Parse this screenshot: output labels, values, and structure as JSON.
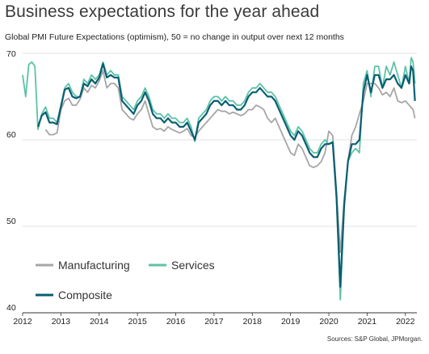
{
  "title": "Business expectations for the year ahead",
  "subtitle": "Global PMI Future Expectations (optimism), 50 = no change in output over next 12 months",
  "source": "Sources: S&P Global, JPMorgan.",
  "chart_data": {
    "type": "line",
    "ylim": [
      40,
      70
    ],
    "xlim": [
      2012.0,
      2022.3
    ],
    "yticks": [
      40,
      50,
      60,
      70
    ],
    "xticks": [
      "2012",
      "2013",
      "2014",
      "2015",
      "2016",
      "2017",
      "2018",
      "2019",
      "2020",
      "2021",
      "2022"
    ],
    "grid": "horizontal",
    "legend_position": "bottom-left",
    "colors": {
      "Manufacturing": "#a6a6a6",
      "Services": "#5cc2a6",
      "Composite": "#0a5e73"
    },
    "series": [
      {
        "name": "Manufacturing",
        "points": [
          [
            2012.6,
            61.2
          ],
          [
            2012.7,
            60.6
          ],
          [
            2012.8,
            60.6
          ],
          [
            2012.9,
            60.8
          ],
          [
            2013.0,
            63.5
          ],
          [
            2013.1,
            64.5
          ],
          [
            2013.2,
            64.8
          ],
          [
            2013.3,
            64.0
          ],
          [
            2013.4,
            64.0
          ],
          [
            2013.5,
            64.7
          ],
          [
            2013.6,
            66.0
          ],
          [
            2013.7,
            65.5
          ],
          [
            2013.8,
            66.3
          ],
          [
            2013.9,
            66.0
          ],
          [
            2014.0,
            66.8
          ],
          [
            2014.1,
            68.0
          ],
          [
            2014.2,
            66.0
          ],
          [
            2014.3,
            66.5
          ],
          [
            2014.4,
            66.5
          ],
          [
            2014.5,
            66.0
          ],
          [
            2014.6,
            63.5
          ],
          [
            2014.7,
            63.0
          ],
          [
            2014.8,
            62.5
          ],
          [
            2014.9,
            62.3
          ],
          [
            2015.0,
            63.0
          ],
          [
            2015.1,
            63.5
          ],
          [
            2015.2,
            64.5
          ],
          [
            2015.3,
            63.0
          ],
          [
            2015.4,
            61.5
          ],
          [
            2015.5,
            61.2
          ],
          [
            2015.6,
            61.3
          ],
          [
            2015.7,
            61.0
          ],
          [
            2015.8,
            61.5
          ],
          [
            2015.9,
            61.2
          ],
          [
            2016.0,
            61.0
          ],
          [
            2016.1,
            60.8
          ],
          [
            2016.2,
            61.0
          ],
          [
            2016.3,
            61.3
          ],
          [
            2016.4,
            60.5
          ],
          [
            2016.5,
            60.3
          ],
          [
            2016.6,
            61.0
          ],
          [
            2016.7,
            61.5
          ],
          [
            2016.8,
            62.0
          ],
          [
            2016.9,
            62.5
          ],
          [
            2017.0,
            63.0
          ],
          [
            2017.1,
            63.5
          ],
          [
            2017.2,
            63.3
          ],
          [
            2017.3,
            63.3
          ],
          [
            2017.4,
            63.0
          ],
          [
            2017.5,
            63.2
          ],
          [
            2017.6,
            63.0
          ],
          [
            2017.7,
            62.8
          ],
          [
            2017.8,
            63.0
          ],
          [
            2017.9,
            63.5
          ],
          [
            2018.0,
            63.5
          ],
          [
            2018.1,
            64.0
          ],
          [
            2018.2,
            63.8
          ],
          [
            2018.3,
            63.5
          ],
          [
            2018.4,
            62.5
          ],
          [
            2018.5,
            62.0
          ],
          [
            2018.6,
            62.5
          ],
          [
            2018.7,
            61.5
          ],
          [
            2018.8,
            60.5
          ],
          [
            2018.9,
            59.5
          ],
          [
            2019.0,
            58.5
          ],
          [
            2019.1,
            58.2
          ],
          [
            2019.2,
            59.5
          ],
          [
            2019.3,
            59.0
          ],
          [
            2019.4,
            58.0
          ],
          [
            2019.5,
            57.0
          ],
          [
            2019.6,
            56.8
          ],
          [
            2019.7,
            57.0
          ],
          [
            2019.8,
            57.5
          ],
          [
            2019.9,
            58.5
          ],
          [
            2020.0,
            61.0
          ],
          [
            2020.1,
            60.5
          ],
          [
            2020.2,
            54.0
          ],
          [
            2020.3,
            47.0
          ],
          [
            2020.4,
            53.0
          ],
          [
            2020.5,
            57.5
          ],
          [
            2020.6,
            60.5
          ],
          [
            2020.7,
            61.5
          ],
          [
            2020.8,
            63.0
          ],
          [
            2020.9,
            64.5
          ],
          [
            2021.0,
            66.5
          ],
          [
            2021.1,
            66.5
          ],
          [
            2021.2,
            66.5
          ],
          [
            2021.3,
            66.0
          ],
          [
            2021.4,
            65.2
          ],
          [
            2021.5,
            65.5
          ],
          [
            2021.6,
            65.0
          ],
          [
            2021.7,
            66.0
          ],
          [
            2021.8,
            64.5
          ],
          [
            2021.9,
            64.3
          ],
          [
            2022.0,
            64.5
          ],
          [
            2022.1,
            64.0
          ],
          [
            2022.2,
            63.5
          ],
          [
            2022.25,
            62.5
          ]
        ]
      },
      {
        "name": "Services",
        "points": [
          [
            2012.0,
            67.5
          ],
          [
            2012.08,
            65.0
          ],
          [
            2012.16,
            68.7
          ],
          [
            2012.24,
            69.0
          ],
          [
            2012.32,
            68.5
          ],
          [
            2012.4,
            61.2
          ],
          [
            2012.5,
            63.0
          ],
          [
            2012.6,
            63.8
          ],
          [
            2012.7,
            62.5
          ],
          [
            2012.8,
            62.5
          ],
          [
            2012.9,
            62.0
          ],
          [
            2013.0,
            64.0
          ],
          [
            2013.1,
            66.0
          ],
          [
            2013.2,
            66.5
          ],
          [
            2013.3,
            65.5
          ],
          [
            2013.4,
            65.0
          ],
          [
            2013.5,
            65.0
          ],
          [
            2013.6,
            67.0
          ],
          [
            2013.7,
            66.5
          ],
          [
            2013.8,
            67.5
          ],
          [
            2013.9,
            67.0
          ],
          [
            2014.0,
            67.5
          ],
          [
            2014.1,
            69.0
          ],
          [
            2014.2,
            67.5
          ],
          [
            2014.3,
            68.0
          ],
          [
            2014.4,
            67.5
          ],
          [
            2014.5,
            67.5
          ],
          [
            2014.6,
            65.0
          ],
          [
            2014.7,
            64.5
          ],
          [
            2014.8,
            64.0
          ],
          [
            2014.9,
            63.5
          ],
          [
            2015.0,
            64.5
          ],
          [
            2015.1,
            65.0
          ],
          [
            2015.2,
            66.0
          ],
          [
            2015.3,
            65.0
          ],
          [
            2015.4,
            63.5
          ],
          [
            2015.5,
            63.0
          ],
          [
            2015.6,
            63.0
          ],
          [
            2015.7,
            62.5
          ],
          [
            2015.8,
            63.0
          ],
          [
            2015.9,
            62.5
          ],
          [
            2016.0,
            62.5
          ],
          [
            2016.1,
            62.0
          ],
          [
            2016.2,
            62.0
          ],
          [
            2016.3,
            62.5
          ],
          [
            2016.4,
            61.5
          ],
          [
            2016.5,
            59.8
          ],
          [
            2016.6,
            62.5
          ],
          [
            2016.7,
            63.0
          ],
          [
            2016.8,
            63.5
          ],
          [
            2016.9,
            64.5
          ],
          [
            2017.0,
            65.0
          ],
          [
            2017.1,
            65.0
          ],
          [
            2017.2,
            64.5
          ],
          [
            2017.3,
            65.0
          ],
          [
            2017.4,
            64.5
          ],
          [
            2017.5,
            64.5
          ],
          [
            2017.6,
            64.0
          ],
          [
            2017.7,
            64.0
          ],
          [
            2017.8,
            64.5
          ],
          [
            2017.9,
            65.5
          ],
          [
            2018.0,
            66.0
          ],
          [
            2018.1,
            66.0
          ],
          [
            2018.2,
            66.5
          ],
          [
            2018.3,
            66.0
          ],
          [
            2018.4,
            65.5
          ],
          [
            2018.5,
            65.5
          ],
          [
            2018.6,
            65.0
          ],
          [
            2018.7,
            64.0
          ],
          [
            2018.8,
            63.0
          ],
          [
            2018.9,
            62.0
          ],
          [
            2019.0,
            61.0
          ],
          [
            2019.1,
            60.5
          ],
          [
            2019.2,
            61.5
          ],
          [
            2019.3,
            61.0
          ],
          [
            2019.4,
            60.0
          ],
          [
            2019.5,
            59.0
          ],
          [
            2019.6,
            58.5
          ],
          [
            2019.7,
            58.5
          ],
          [
            2019.8,
            59.5
          ],
          [
            2019.9,
            60.0
          ],
          [
            2020.0,
            59.5
          ],
          [
            2020.1,
            59.8
          ],
          [
            2020.2,
            53.0
          ],
          [
            2020.3,
            41.5
          ],
          [
            2020.4,
            52.0
          ],
          [
            2020.5,
            57.5
          ],
          [
            2020.6,
            58.5
          ],
          [
            2020.7,
            59.0
          ],
          [
            2020.8,
            58.5
          ],
          [
            2020.9,
            66.5
          ],
          [
            2021.0,
            68.0
          ],
          [
            2021.1,
            65.0
          ],
          [
            2021.2,
            68.5
          ],
          [
            2021.3,
            68.5
          ],
          [
            2021.4,
            66.0
          ],
          [
            2021.5,
            68.5
          ],
          [
            2021.6,
            67.5
          ],
          [
            2021.7,
            69.0
          ],
          [
            2021.8,
            67.5
          ],
          [
            2021.9,
            66.0
          ],
          [
            2022.0,
            68.5
          ],
          [
            2022.1,
            66.5
          ],
          [
            2022.15,
            69.5
          ],
          [
            2022.2,
            69.0
          ],
          [
            2022.25,
            66.5
          ]
        ]
      },
      {
        "name": "Composite",
        "points": [
          [
            2012.4,
            61.5
          ],
          [
            2012.5,
            62.8
          ],
          [
            2012.6,
            63.2
          ],
          [
            2012.7,
            62.0
          ],
          [
            2012.8,
            62.0
          ],
          [
            2012.9,
            61.8
          ],
          [
            2013.0,
            63.8
          ],
          [
            2013.1,
            65.8
          ],
          [
            2013.2,
            66.0
          ],
          [
            2013.3,
            65.0
          ],
          [
            2013.4,
            64.8
          ],
          [
            2013.5,
            65.0
          ],
          [
            2013.6,
            66.5
          ],
          [
            2013.7,
            66.2
          ],
          [
            2013.8,
            67.0
          ],
          [
            2013.9,
            66.5
          ],
          [
            2014.0,
            67.2
          ],
          [
            2014.1,
            68.8
          ],
          [
            2014.2,
            67.2
          ],
          [
            2014.3,
            67.5
          ],
          [
            2014.4,
            67.2
          ],
          [
            2014.5,
            67.2
          ],
          [
            2014.6,
            64.5
          ],
          [
            2014.7,
            64.0
          ],
          [
            2014.8,
            63.5
          ],
          [
            2014.9,
            63.0
          ],
          [
            2015.0,
            64.0
          ],
          [
            2015.1,
            64.5
          ],
          [
            2015.2,
            65.5
          ],
          [
            2015.3,
            64.5
          ],
          [
            2015.4,
            63.0
          ],
          [
            2015.5,
            62.5
          ],
          [
            2015.6,
            62.5
          ],
          [
            2015.7,
            62.0
          ],
          [
            2015.8,
            62.5
          ],
          [
            2015.9,
            62.0
          ],
          [
            2016.0,
            62.0
          ],
          [
            2016.1,
            61.5
          ],
          [
            2016.2,
            61.5
          ],
          [
            2016.3,
            62.0
          ],
          [
            2016.4,
            61.0
          ],
          [
            2016.5,
            60.0
          ],
          [
            2016.6,
            62.0
          ],
          [
            2016.7,
            62.5
          ],
          [
            2016.8,
            63.0
          ],
          [
            2016.9,
            64.0
          ],
          [
            2017.0,
            64.5
          ],
          [
            2017.1,
            64.5
          ],
          [
            2017.2,
            64.0
          ],
          [
            2017.3,
            64.5
          ],
          [
            2017.4,
            64.0
          ],
          [
            2017.5,
            64.0
          ],
          [
            2017.6,
            63.5
          ],
          [
            2017.7,
            63.5
          ],
          [
            2017.8,
            64.0
          ],
          [
            2017.9,
            65.0
          ],
          [
            2018.0,
            65.5
          ],
          [
            2018.1,
            65.5
          ],
          [
            2018.2,
            66.0
          ],
          [
            2018.3,
            65.5
          ],
          [
            2018.4,
            65.0
          ],
          [
            2018.5,
            65.0
          ],
          [
            2018.6,
            64.5
          ],
          [
            2018.7,
            63.5
          ],
          [
            2018.8,
            62.5
          ],
          [
            2018.9,
            61.5
          ],
          [
            2019.0,
            60.5
          ],
          [
            2019.1,
            60.0
          ],
          [
            2019.2,
            61.0
          ],
          [
            2019.3,
            60.5
          ],
          [
            2019.4,
            59.5
          ],
          [
            2019.5,
            58.5
          ],
          [
            2019.6,
            58.0
          ],
          [
            2019.7,
            58.0
          ],
          [
            2019.8,
            59.0
          ],
          [
            2019.9,
            59.5
          ],
          [
            2020.0,
            59.5
          ],
          [
            2020.1,
            59.7
          ],
          [
            2020.2,
            53.5
          ],
          [
            2020.3,
            43.0
          ],
          [
            2020.4,
            52.5
          ],
          [
            2020.5,
            57.5
          ],
          [
            2020.6,
            59.5
          ],
          [
            2020.7,
            59.5
          ],
          [
            2020.8,
            60.0
          ],
          [
            2020.9,
            65.5
          ],
          [
            2021.0,
            67.5
          ],
          [
            2021.1,
            65.5
          ],
          [
            2021.2,
            67.5
          ],
          [
            2021.3,
            67.5
          ],
          [
            2021.4,
            66.0
          ],
          [
            2021.5,
            67.0
          ],
          [
            2021.6,
            67.0
          ],
          [
            2021.7,
            67.5
          ],
          [
            2021.8,
            66.5
          ],
          [
            2021.9,
            66.0
          ],
          [
            2022.0,
            67.5
          ],
          [
            2022.1,
            66.5
          ],
          [
            2022.15,
            68.5
          ],
          [
            2022.2,
            68.0
          ],
          [
            2022.25,
            64.5
          ]
        ]
      }
    ]
  }
}
